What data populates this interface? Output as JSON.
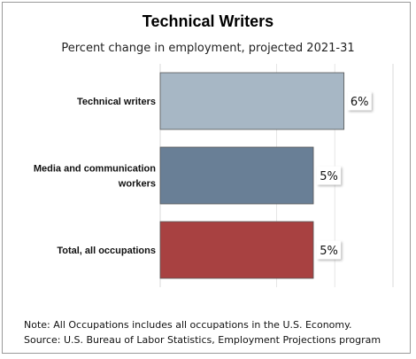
{
  "title": "Technical Writers",
  "subtitle": "Percent change in employment, projected 2021-31",
  "notes": {
    "note": "Note: All Occupations includes all occupations in the U.S. Economy.",
    "source": "Source: U.S. Bureau of Labor Statistics, Employment Projections program"
  },
  "chart_data": {
    "type": "bar",
    "orientation": "horizontal",
    "title": "Technical Writers",
    "subtitle": "Percent change in employment, projected 2021-31",
    "categories": [
      [
        "Technical writers"
      ],
      [
        "Media and communication",
        "workers"
      ],
      [
        "Total, all occupations"
      ]
    ],
    "values": [
      6,
      5,
      5
    ],
    "value_labels": [
      "6%",
      "5%",
      "5%"
    ],
    "colors": [
      "#a7b7c5",
      "#697f96",
      "#a84141"
    ],
    "xlim": [
      0,
      7.6
    ],
    "grid": true,
    "legend": "none"
  }
}
